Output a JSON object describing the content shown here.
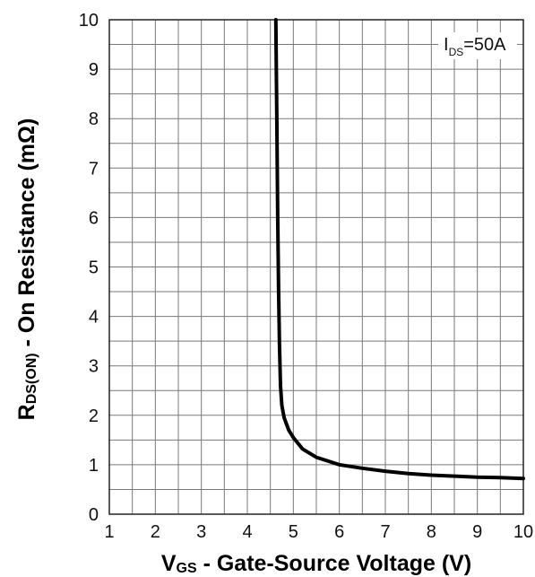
{
  "chart_data": {
    "type": "line",
    "xlabel": {
      "main": "V",
      "sub": "GS",
      "rest": " - Gate-Source Voltage (V)"
    },
    "ylabel": {
      "main": "R",
      "sub": "DS(ON)",
      "rest": " - On Resistance (mΩ)"
    },
    "annotation": {
      "main": "I",
      "sub": "DS",
      "rest": "=50A"
    },
    "xlim": [
      1,
      10
    ],
    "ylim": [
      0,
      10
    ],
    "xticks": [
      "1",
      "2",
      "3",
      "4",
      "5",
      "6",
      "7",
      "8",
      "9",
      "10"
    ],
    "yticks": [
      "0",
      "1",
      "2",
      "3",
      "4",
      "5",
      "6",
      "7",
      "8",
      "9",
      "10"
    ],
    "grid": true,
    "minor_grid_step": 0.5,
    "line_color": "#000000",
    "series": [
      {
        "x": [
          4.62,
          4.64,
          4.66,
          4.68,
          4.7,
          4.72,
          4.75,
          4.8,
          4.9,
          5.0,
          5.2,
          5.5,
          6.0,
          6.5,
          7.0,
          7.5,
          8.0,
          8.5,
          9.0,
          9.5,
          10.0
        ],
        "y": [
          10.0,
          8.0,
          6.0,
          4.5,
          3.4,
          2.6,
          2.2,
          1.95,
          1.7,
          1.55,
          1.32,
          1.15,
          1.0,
          0.93,
          0.87,
          0.82,
          0.79,
          0.77,
          0.75,
          0.74,
          0.72
        ]
      }
    ]
  }
}
